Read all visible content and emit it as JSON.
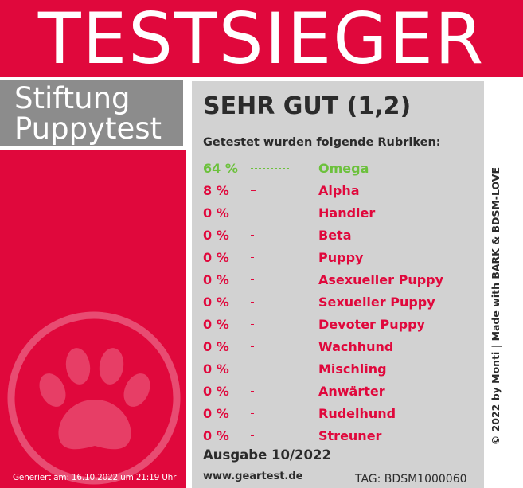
{
  "banner": {
    "title": "TESTSIEGER"
  },
  "organization": {
    "line1": "Stiftung",
    "line2": "Puppytest"
  },
  "result": {
    "rating": "SEHR GUT (1,2)",
    "subheading": "Getestet wurden folgende Rubriken:",
    "categories": [
      {
        "percent": "64 %",
        "value": 64,
        "name": "Omega"
      },
      {
        "percent": "8 %",
        "value": 8,
        "name": "Alpha"
      },
      {
        "percent": "0 %",
        "value": 0,
        "name": "Handler"
      },
      {
        "percent": "0 %",
        "value": 0,
        "name": "Beta"
      },
      {
        "percent": "0 %",
        "value": 0,
        "name": "Puppy"
      },
      {
        "percent": "0 %",
        "value": 0,
        "name": "Asexueller Puppy"
      },
      {
        "percent": "0 %",
        "value": 0,
        "name": "Sexueller Puppy"
      },
      {
        "percent": "0 %",
        "value": 0,
        "name": "Devoter Puppy"
      },
      {
        "percent": "0 %",
        "value": 0,
        "name": "Wachhund"
      },
      {
        "percent": "0 %",
        "value": 0,
        "name": "Mischling"
      },
      {
        "percent": "0 %",
        "value": 0,
        "name": "Anwärter"
      },
      {
        "percent": "0 %",
        "value": 0,
        "name": "Rudelhund"
      },
      {
        "percent": "0 %",
        "value": 0,
        "name": "Streuner"
      }
    ],
    "issue": "Ausgabe 10/2022",
    "website": "www.geartest.de",
    "tag": "TAG: BDSM1000060"
  },
  "footer": {
    "generated": "Generiert am: 16.10.2022 um 21:19 Uhr"
  },
  "credit": "© 2022 by Monti | Made with BARK & BDSM-LOVE",
  "colors": {
    "brand_red": "#e0083c",
    "panel_gray": "#d2d2d2",
    "org_gray": "#8c8c8c",
    "top_green": "#6cc13c",
    "text_dark": "#2b2b2b"
  },
  "icons": {
    "paw": "paw-print-icon"
  }
}
